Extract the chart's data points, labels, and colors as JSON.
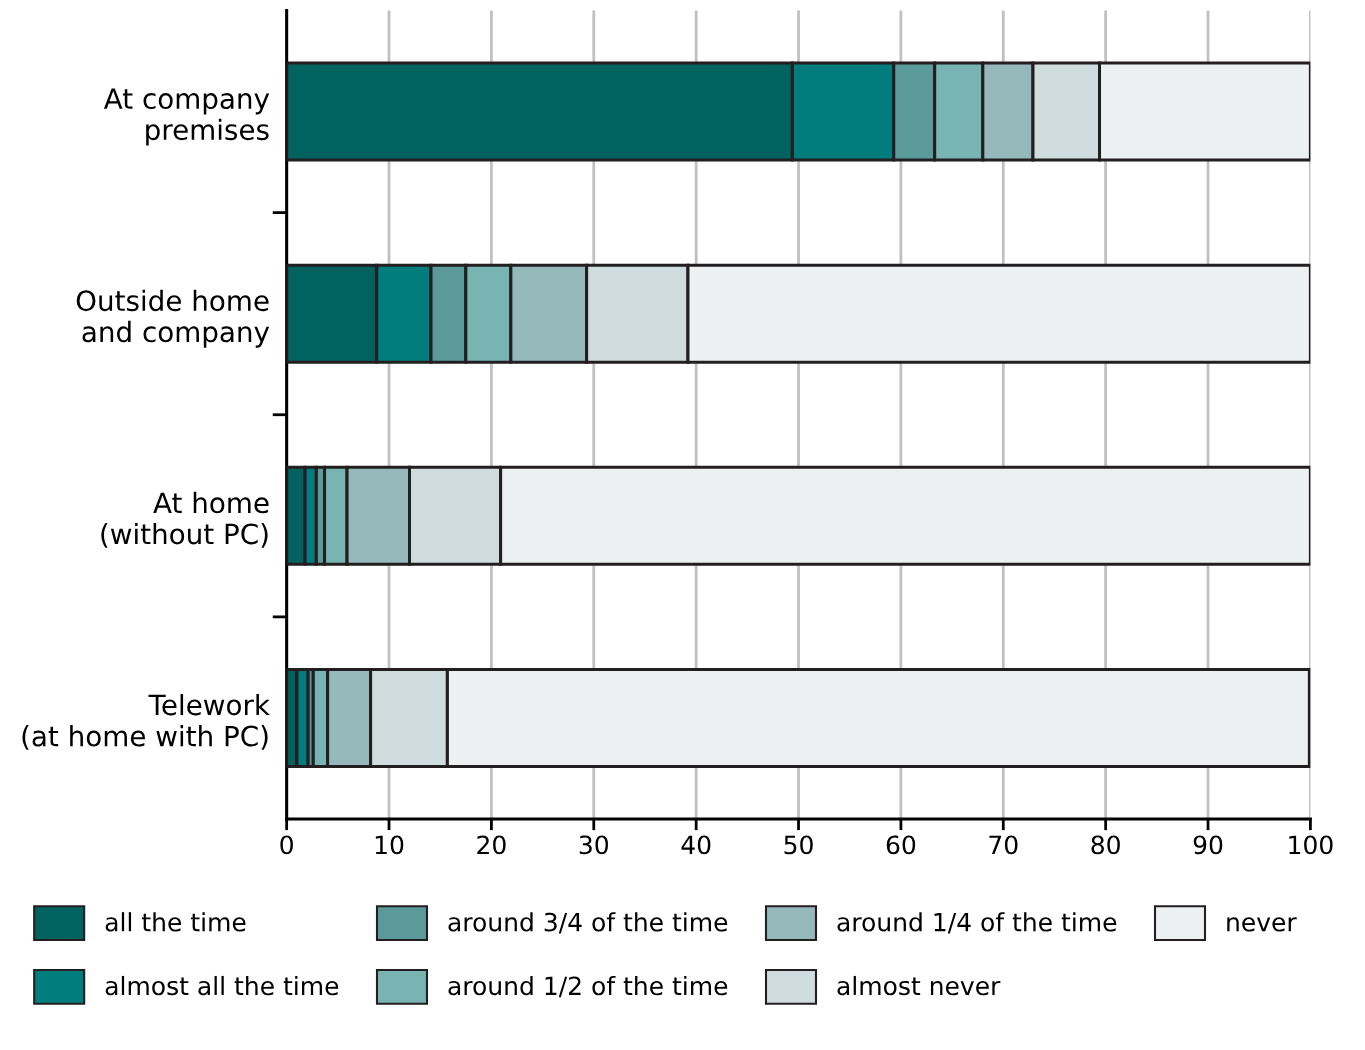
{
  "chart_data": {
    "type": "bar",
    "orientation": "horizontal",
    "stacked": true,
    "categories": [
      "At company\npremises",
      "Outside home\nand company",
      "At home\n(without PC)",
      "Telework\n(at home with PC)"
    ],
    "series": [
      {
        "name": "all the time",
        "color": "#02625f",
        "values": [
          49.4,
          8.8,
          1.8,
          1.0
        ]
      },
      {
        "name": "almost all the time",
        "color": "#027d7e",
        "values": [
          9.9,
          5.3,
          1.1,
          1.1
        ]
      },
      {
        "name": "around 3/4 of the time",
        "color": "#5b9a9b",
        "values": [
          4.0,
          3.4,
          0.8,
          0.5
        ]
      },
      {
        "name": "around 1/2 of the time",
        "color": "#77b4b2",
        "values": [
          4.7,
          4.4,
          2.2,
          1.4
        ]
      },
      {
        "name": "around 1/4 of the time",
        "color": "#95b8bb",
        "values": [
          4.9,
          7.4,
          6.1,
          4.2
        ]
      },
      {
        "name": "almost never",
        "color": "#cfdcdd",
        "values": [
          6.5,
          9.9,
          8.9,
          7.5
        ]
      },
      {
        "name": "never",
        "color": "#ecf0f1",
        "values": [
          20.6,
          60.8,
          79.1,
          84.2
        ]
      }
    ],
    "xlim": [
      0,
      100
    ],
    "xticks": [
      0,
      10,
      20,
      30,
      40,
      50,
      60,
      70,
      80,
      90,
      100
    ],
    "grid": "x",
    "legend": "bottom"
  }
}
